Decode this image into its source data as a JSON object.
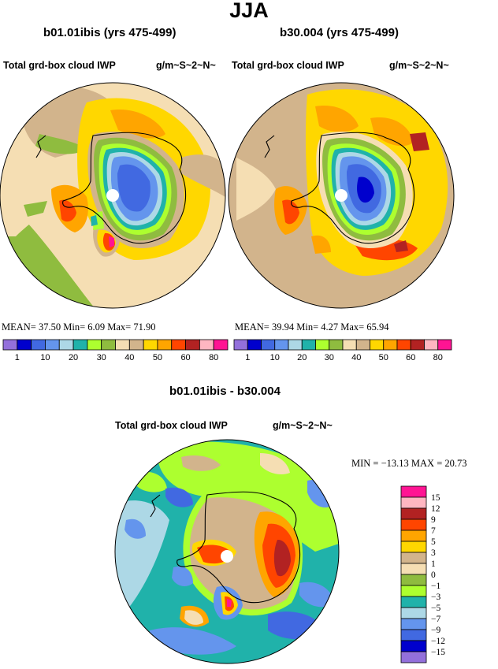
{
  "season_title": "JJA",
  "panels": [
    {
      "case_title": "b01.01ibis (yrs 475-499)",
      "var_label": "Total grd-box cloud IWP",
      "units": "g/m~S~2~N~",
      "stats_text": "MEAN=   37.50   Min=    6.09   Max=   71.90"
    },
    {
      "case_title": "b30.004 (yrs 475-499)",
      "var_label": "Total grd-box cloud IWP",
      "units": "g/m~S~2~N~",
      "stats_text": "MEAN=   39.94   Min=    4.27   Max=   65.94"
    }
  ],
  "diff_panel": {
    "case_title": "b01.01ibis - b30.004",
    "var_label": "Total grd-box cloud IWP",
    "units": "g/m~S~2~N~",
    "minmax_text": "MIN = −13.13  MAX =   20.73"
  },
  "colors": {
    "abs_colorbar": [
      "#9370db",
      "#0000cd",
      "#4169e1",
      "#6495ed",
      "#add8e6",
      "#20b2aa",
      "#adff2f",
      "#8fbc3f",
      "#f5deb3",
      "#d2b48c",
      "#ffd700",
      "#ffa500",
      "#ff4500",
      "#b22222",
      "#ffb6c1",
      "#ff1493"
    ],
    "diff_colorbar": [
      "#9370db",
      "#0000cd",
      "#4169e1",
      "#6495ed",
      "#add8e6",
      "#20b2aa",
      "#adff2f",
      "#8fbc3f",
      "#f5deb3",
      "#d2b48c",
      "#ffd700",
      "#ffa500",
      "#ff4500",
      "#b22222",
      "#ffb6c1",
      "#ff1493"
    ]
  },
  "chart_data": [
    {
      "type": "heatmap",
      "projection": "south polar stereographic",
      "title": "b01.01ibis (yrs 475-499)",
      "subtitle": "Total grd-box cloud IWP",
      "units": "g/m~S~2~N~",
      "colorbar_ticks": [
        "1",
        "10",
        "20",
        "30",
        "40",
        "50",
        "60",
        "80"
      ],
      "mean": 37.5,
      "min": 6.09,
      "max": 71.9
    },
    {
      "type": "heatmap",
      "projection": "south polar stereographic",
      "title": "b30.004 (yrs 475-499)",
      "subtitle": "Total grd-box cloud IWP",
      "units": "g/m~S~2~N~",
      "colorbar_ticks": [
        "1",
        "10",
        "20",
        "30",
        "40",
        "50",
        "60",
        "80"
      ],
      "mean": 39.94,
      "min": 4.27,
      "max": 65.94
    },
    {
      "type": "heatmap",
      "projection": "south polar stereographic",
      "title": "b01.01ibis - b30.004",
      "subtitle": "Total grd-box cloud IWP",
      "units": "g/m~S~2~N~",
      "colorbar_ticks": [
        "15",
        "12",
        "9",
        "7",
        "5",
        "3",
        "1",
        "0",
        "−1",
        "−3",
        "−5",
        "−7",
        "−9",
        "−12",
        "−15"
      ],
      "min": -13.13,
      "max": 20.73
    }
  ]
}
